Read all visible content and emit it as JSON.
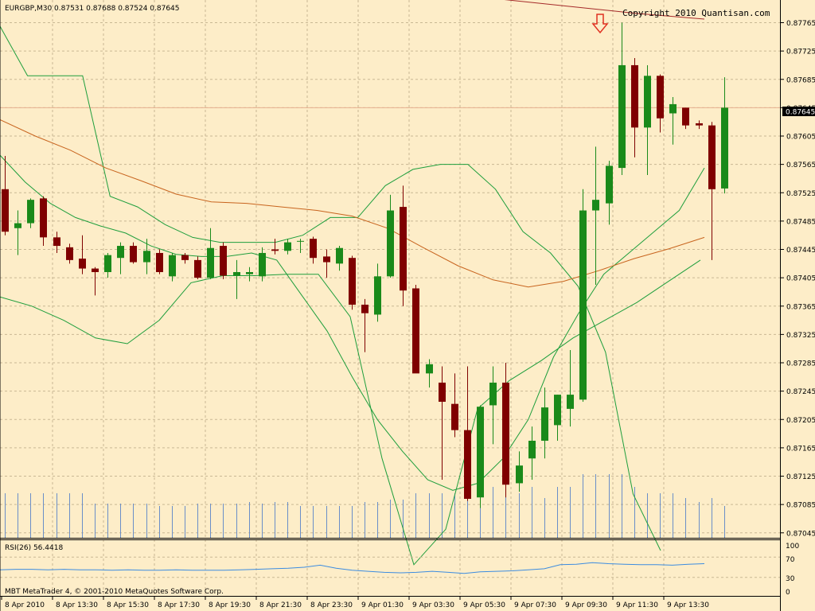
{
  "header": {
    "symbol_ohlc": "EURGBP,M30  0.87531 0.87688 0.87524 0.87645",
    "copyright": "Copyright 2010 Quantisan.com"
  },
  "footer": {
    "platform": "MBT MetaTrader 4, © 2001-2010 MetaQuotes Software Corp."
  },
  "rsi_panel": {
    "label": "RSI(26) 56.4418",
    "levels": [
      "100",
      "70",
      "30",
      "0"
    ]
  },
  "colors": {
    "background": "#fdedc8",
    "bull": "#1a8a1a",
    "bear": "#7f0000",
    "bollinger": "#1e9e3c",
    "ma_long": "#a52a2a",
    "ma_mid": "#c8641e",
    "volume": "#6a8ec8",
    "rsi": "#3c8ce0",
    "current_price_line": "#e6b090",
    "arrow": "#e03020"
  },
  "icons": {
    "signal_arrow": "down-arrow-icon"
  },
  "chart_data": {
    "type": "candlestick",
    "price_axis": {
      "ticks": [
        "0.87765",
        "0.87725",
        "0.87685",
        "0.87645",
        "0.87605",
        "0.87565",
        "0.87525",
        "0.87485",
        "0.87445",
        "0.87405",
        "0.87365",
        "0.87325",
        "0.87285",
        "0.87245",
        "0.87205",
        "0.87165",
        "0.87125",
        "0.87085",
        "0.87045"
      ],
      "current_price": "0.87645",
      "ylim": [
        0.87038,
        0.87797
      ]
    },
    "time_axis": {
      "labels": [
        "8 Apr 2010",
        "8 Apr 13:30",
        "8 Apr 15:30",
        "8 Apr 17:30",
        "8 Apr 19:30",
        "8 Apr 21:30",
        "8 Apr 23:30",
        "9 Apr 01:30",
        "9 Apr 03:30",
        "9 Apr 05:30",
        "9 Apr 07:30",
        "9 Apr 09:30",
        "9 Apr 11:30",
        "9 Apr 13:30"
      ]
    },
    "candles": [
      {
        "o": 0.8753,
        "h": 0.87577,
        "l": 0.87465,
        "c": 0.8747
      },
      {
        "o": 0.87475,
        "h": 0.875,
        "l": 0.87437,
        "c": 0.87482
      },
      {
        "o": 0.87482,
        "h": 0.87517,
        "l": 0.87475,
        "c": 0.87515
      },
      {
        "o": 0.87517,
        "h": 0.8752,
        "l": 0.8745,
        "c": 0.87462
      },
      {
        "o": 0.87462,
        "h": 0.8747,
        "l": 0.8744,
        "c": 0.8745
      },
      {
        "o": 0.87448,
        "h": 0.87453,
        "l": 0.87425,
        "c": 0.8743
      },
      {
        "o": 0.87432,
        "h": 0.87465,
        "l": 0.8741,
        "c": 0.87418
      },
      {
        "o": 0.87418,
        "h": 0.8742,
        "l": 0.8738,
        "c": 0.87413
      },
      {
        "o": 0.87413,
        "h": 0.8744,
        "l": 0.87405,
        "c": 0.87437
      },
      {
        "o": 0.87433,
        "h": 0.87455,
        "l": 0.8741,
        "c": 0.8745
      },
      {
        "o": 0.8745,
        "h": 0.87455,
        "l": 0.87425,
        "c": 0.87427
      },
      {
        "o": 0.87427,
        "h": 0.8746,
        "l": 0.8741,
        "c": 0.87443
      },
      {
        "o": 0.8744,
        "h": 0.87445,
        "l": 0.8741,
        "c": 0.87413
      },
      {
        "o": 0.87407,
        "h": 0.8744,
        "l": 0.874,
        "c": 0.87437
      },
      {
        "o": 0.87437,
        "h": 0.8744,
        "l": 0.87425,
        "c": 0.8743
      },
      {
        "o": 0.8743,
        "h": 0.87435,
        "l": 0.87403,
        "c": 0.87405
      },
      {
        "o": 0.87405,
        "h": 0.87475,
        "l": 0.87403,
        "c": 0.87447
      },
      {
        "o": 0.8745,
        "h": 0.87455,
        "l": 0.87403,
        "c": 0.87408
      },
      {
        "o": 0.87408,
        "h": 0.8743,
        "l": 0.87375,
        "c": 0.87413
      },
      {
        "o": 0.8741,
        "h": 0.8742,
        "l": 0.874,
        "c": 0.87413
      },
      {
        "o": 0.87407,
        "h": 0.87448,
        "l": 0.874,
        "c": 0.8744
      },
      {
        "o": 0.87445,
        "h": 0.8746,
        "l": 0.87438,
        "c": 0.87443
      },
      {
        "o": 0.87443,
        "h": 0.8746,
        "l": 0.87438,
        "c": 0.87455
      },
      {
        "o": 0.87457,
        "h": 0.8746,
        "l": 0.8744,
        "c": 0.87457
      },
      {
        "o": 0.8746,
        "h": 0.87463,
        "l": 0.87425,
        "c": 0.87433
      },
      {
        "o": 0.87435,
        "h": 0.87445,
        "l": 0.87405,
        "c": 0.87427
      },
      {
        "o": 0.87425,
        "h": 0.8745,
        "l": 0.87415,
        "c": 0.87447
      },
      {
        "o": 0.87433,
        "h": 0.87436,
        "l": 0.8736,
        "c": 0.87367
      },
      {
        "o": 0.87367,
        "h": 0.87375,
        "l": 0.873,
        "c": 0.87355
      },
      {
        "o": 0.87353,
        "h": 0.87425,
        "l": 0.87343,
        "c": 0.87407
      },
      {
        "o": 0.87407,
        "h": 0.87522,
        "l": 0.87405,
        "c": 0.875
      },
      {
        "o": 0.87505,
        "h": 0.87535,
        "l": 0.87365,
        "c": 0.87387
      },
      {
        "o": 0.8739,
        "h": 0.87395,
        "l": 0.87275,
        "c": 0.8727
      },
      {
        "o": 0.8727,
        "h": 0.8729,
        "l": 0.8725,
        "c": 0.87283
      },
      {
        "o": 0.87257,
        "h": 0.8728,
        "l": 0.8712,
        "c": 0.8723
      },
      {
        "o": 0.87227,
        "h": 0.8727,
        "l": 0.8718,
        "c": 0.8719
      },
      {
        "o": 0.8719,
        "h": 0.8728,
        "l": 0.8709,
        "c": 0.87093
      },
      {
        "o": 0.87095,
        "h": 0.87225,
        "l": 0.8708,
        "c": 0.87223
      },
      {
        "o": 0.87225,
        "h": 0.8728,
        "l": 0.8717,
        "c": 0.87257
      },
      {
        "o": 0.87257,
        "h": 0.87285,
        "l": 0.87095,
        "c": 0.87113
      },
      {
        "o": 0.87115,
        "h": 0.8716,
        "l": 0.87103,
        "c": 0.8714
      },
      {
        "o": 0.8715,
        "h": 0.87195,
        "l": 0.8712,
        "c": 0.87175
      },
      {
        "o": 0.87175,
        "h": 0.8725,
        "l": 0.8715,
        "c": 0.87222
      },
      {
        "o": 0.87197,
        "h": 0.8724,
        "l": 0.87175,
        "c": 0.8724
      },
      {
        "o": 0.8722,
        "h": 0.87303,
        "l": 0.87195,
        "c": 0.8724
      },
      {
        "o": 0.87233,
        "h": 0.8753,
        "l": 0.8723,
        "c": 0.875
      },
      {
        "o": 0.875,
        "h": 0.8759,
        "l": 0.87395,
        "c": 0.87515
      },
      {
        "o": 0.8751,
        "h": 0.8757,
        "l": 0.8748,
        "c": 0.87563
      },
      {
        "o": 0.8756,
        "h": 0.87765,
        "l": 0.8755,
        "c": 0.87705
      },
      {
        "o": 0.87705,
        "h": 0.87715,
        "l": 0.87575,
        "c": 0.87617
      },
      {
        "o": 0.87617,
        "h": 0.87705,
        "l": 0.8755,
        "c": 0.8769
      },
      {
        "o": 0.8769,
        "h": 0.87692,
        "l": 0.8761,
        "c": 0.8763
      },
      {
        "o": 0.87637,
        "h": 0.8766,
        "l": 0.87593,
        "c": 0.8765
      },
      {
        "o": 0.87645,
        "h": 0.87645,
        "l": 0.87615,
        "c": 0.8762
      },
      {
        "o": 0.87623,
        "h": 0.87627,
        "l": 0.87615,
        "c": 0.8762
      },
      {
        "o": 0.8762,
        "h": 0.87625,
        "l": 0.8743,
        "c": 0.8753
      },
      {
        "o": 0.87531,
        "h": 0.87688,
        "l": 0.87524,
        "c": 0.87645
      }
    ],
    "overlays": [
      {
        "name": "",
        "color": "#1e9e3c",
        "points": [
          0.8776,
          0.8769,
          0.8769,
          0.8769,
          0.8752,
          0.87505,
          0.8748,
          0.87462,
          0.87455,
          0.87455,
          0.87455,
          0.87465,
          0.8749,
          0.8749,
          0.87535,
          0.87558,
          0.87565,
          0.87565,
          0.8753,
          0.8747,
          0.8744,
          0.87393,
          0.873,
          0.871,
          0.8702
        ]
      },
      {
        "name": "",
        "color": "#1e9e3c",
        "points": [
          0.87578,
          0.8754,
          0.8751,
          0.8749,
          0.87478,
          0.87468,
          0.8745,
          0.87438,
          0.87435,
          0.87435,
          0.8744,
          0.8743,
          0.8738,
          0.8733,
          0.87265,
          0.87205,
          0.8716,
          0.8712,
          0.87105,
          0.87115,
          0.8715,
          0.87205,
          0.87293,
          0.87355,
          0.8741,
          0.8744,
          0.8747,
          0.875,
          0.8756
        ]
      },
      {
        "name": "",
        "color": "#1e9e3c",
        "points": [
          0.87378,
          0.87365,
          0.87345,
          0.8732,
          0.87312,
          0.87345,
          0.87398,
          0.87408,
          0.87408,
          0.8741,
          0.8741,
          0.8735,
          0.8715,
          0.87,
          0.8705,
          0.8722,
          0.8726,
          0.87288,
          0.8732,
          0.87345,
          0.8737,
          0.874,
          0.8743
        ]
      },
      {
        "name": "",
        "color": "#c8641e",
        "points": [
          0.87628,
          0.87605,
          0.87585,
          0.8756,
          0.87542,
          0.87523,
          0.87512,
          0.8751,
          0.87505,
          0.875,
          0.87492,
          0.87475,
          0.87448,
          0.87422,
          0.87402,
          0.87392,
          0.874,
          0.87415,
          0.87432,
          0.87446,
          0.87462
        ]
      },
      {
        "name": "",
        "color": "#a52a2a",
        "points": [
          0.87798,
          0.87788,
          0.87778,
          0.8777
        ]
      }
    ],
    "volume": [
      56,
      56,
      56,
      56,
      56,
      56,
      56,
      43,
      43,
      43,
      43,
      43,
      40,
      40,
      40,
      43,
      43,
      43,
      43,
      45,
      43,
      45,
      45,
      40,
      40,
      40,
      40,
      40,
      45,
      45,
      48,
      48,
      56,
      56,
      56,
      56,
      56,
      64,
      64,
      56,
      56,
      64,
      50,
      64,
      64,
      80,
      80,
      80,
      80,
      64,
      56,
      56,
      56,
      50,
      45,
      50,
      40
    ],
    "rsi": {
      "levels": [
        100,
        70,
        30,
        0
      ],
      "values": [
        45,
        46,
        46,
        45,
        46,
        45,
        45,
        44,
        45,
        44,
        44,
        45,
        44,
        44,
        44,
        45,
        46,
        47,
        48,
        50,
        54,
        48,
        44,
        42,
        40,
        39,
        40,
        42,
        40,
        38,
        41,
        42,
        43,
        45,
        47,
        55,
        56,
        59,
        57,
        56,
        55,
        55,
        54,
        56,
        57
      ]
    }
  }
}
